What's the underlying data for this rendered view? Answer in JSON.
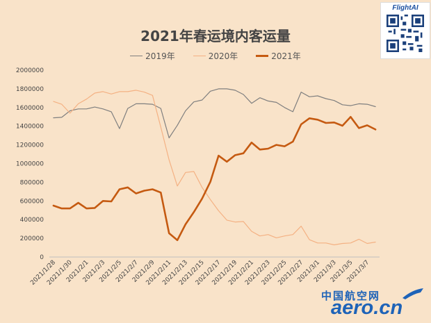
{
  "chart_data": {
    "type": "line",
    "title": "2021年春运境内客运量",
    "xlabel": "",
    "ylabel": "",
    "ylim": [
      0,
      2000000
    ],
    "yticks": [
      "2000000",
      "1800000",
      "1600000",
      "1400000",
      "1200000",
      "1000000",
      "800000",
      "600000",
      "400000",
      "200000",
      "0"
    ],
    "xtick_labels": [
      "2021/1/28",
      "2021/1/30",
      "2021/2/1",
      "2021/2/3",
      "2021/2/5",
      "2021/2/7",
      "2021/2/9",
      "2021/2/11",
      "2021/2/13",
      "2021/2/15",
      "2021/2/17",
      "2021/2/19",
      "2021/2/21",
      "2021/2/23",
      "2021/2/25",
      "2021/2/27",
      "2021/3/1",
      "2021/3/3",
      "2021/3/5",
      "2021/3/7"
    ],
    "legend_position": "top",
    "grid": false,
    "series": [
      {
        "name": "2019年",
        "color": "#7f7f7f",
        "width": 1.2,
        "values": [
          1490000,
          1495000,
          1565000,
          1585000,
          1585000,
          1605000,
          1585000,
          1555000,
          1375000,
          1590000,
          1640000,
          1640000,
          1635000,
          1590000,
          1275000,
          1410000,
          1565000,
          1660000,
          1680000,
          1775000,
          1800000,
          1800000,
          1785000,
          1740000,
          1645000,
          1705000,
          1670000,
          1655000,
          1600000,
          1555000,
          1765000,
          1715000,
          1725000,
          1695000,
          1675000,
          1630000,
          1620000,
          1640000,
          1635000,
          1610000
        ]
      },
      {
        "name": "2020年",
        "color": "#f4b183",
        "width": 1.2,
        "values": [
          1665000,
          1635000,
          1540000,
          1640000,
          1690000,
          1755000,
          1770000,
          1745000,
          1770000,
          1770000,
          1785000,
          1765000,
          1730000,
          1390000,
          1040000,
          760000,
          905000,
          915000,
          745000,
          615000,
          495000,
          395000,
          375000,
          380000,
          275000,
          225000,
          240000,
          205000,
          225000,
          240000,
          330000,
          185000,
          150000,
          150000,
          130000,
          145000,
          150000,
          190000,
          145000,
          160000
        ]
      },
      {
        "name": "2021年",
        "color": "#c55a11",
        "width": 2.6,
        "values": [
          550000,
          520000,
          520000,
          580000,
          520000,
          525000,
          600000,
          595000,
          725000,
          745000,
          680000,
          710000,
          725000,
          690000,
          255000,
          180000,
          350000,
          480000,
          625000,
          805000,
          1085000,
          1020000,
          1090000,
          1110000,
          1225000,
          1150000,
          1160000,
          1200000,
          1185000,
          1235000,
          1420000,
          1485000,
          1470000,
          1435000,
          1440000,
          1405000,
          1500000,
          1380000,
          1410000,
          1365000
        ]
      }
    ]
  },
  "branding": {
    "logo_text": "FlightAI",
    "watermark_cn": "中国航空网",
    "watermark_en": "aero.cn"
  }
}
